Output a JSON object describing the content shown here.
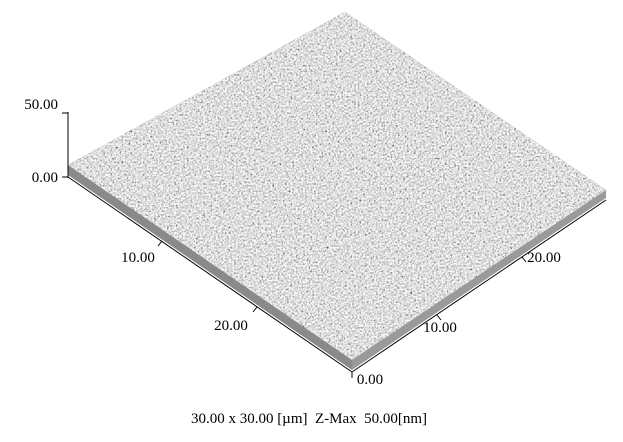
{
  "z_axis": {
    "ticks": [
      "50.00",
      "0.00"
    ]
  },
  "x_axis": {
    "ticks": [
      "10.00",
      "20.00"
    ]
  },
  "y_axis": {
    "ticks": [
      "0.00",
      "10.00",
      "20.00"
    ]
  },
  "caption": "30.00 x 30.00 [µm]  Z-Max  50.00[nm]"
}
